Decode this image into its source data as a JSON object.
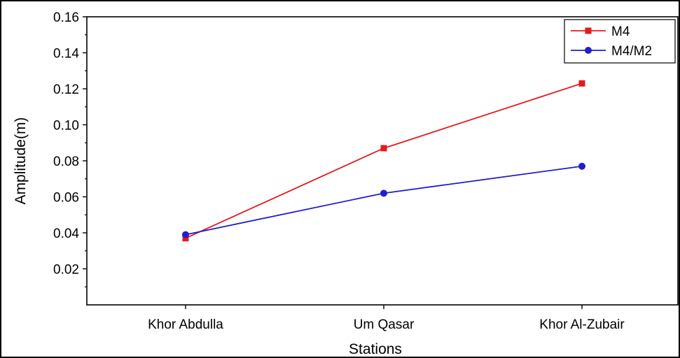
{
  "chart_data": {
    "type": "line",
    "categories": [
      "Khor Abdulla",
      "Um Qasar",
      "Khor Al-Zubair"
    ],
    "series": [
      {
        "name": "M4",
        "values": [
          0.037,
          0.087,
          0.123
        ],
        "color": "#e41a1c",
        "marker": "square"
      },
      {
        "name": "M4/M2",
        "values": [
          0.039,
          0.062,
          0.077
        ],
        "color": "#1f1fcc",
        "marker": "circle"
      }
    ],
    "xlabel": "Stations",
    "ylabel": "Amplitude(m)",
    "ylim": [
      0.0,
      0.16
    ],
    "yticks": [
      0.02,
      0.04,
      0.06,
      0.08,
      0.1,
      0.12,
      0.14,
      0.16
    ],
    "ytick_labels": [
      "0.02",
      "0.04",
      "0.06",
      "0.08",
      "0.10",
      "0.12",
      "0.14",
      "0.16"
    ],
    "grid": false,
    "legend": "top-right"
  }
}
